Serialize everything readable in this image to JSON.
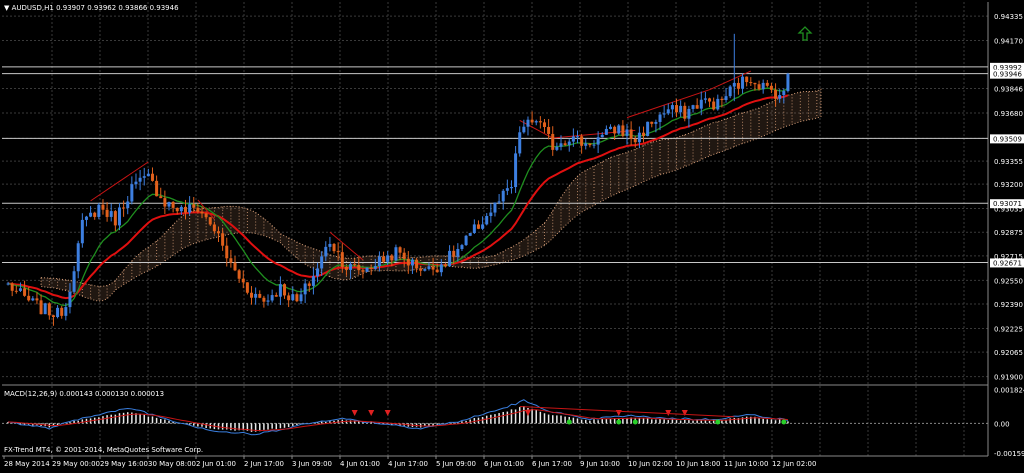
{
  "header": {
    "symbol_label": "AUDUSD,H1",
    "ohlc_label": "0.93907 0.93962 0.93866 0.93946"
  },
  "macd_header": {
    "label": "MACD(12,26,9) 0.000143 0.000130 0.000013"
  },
  "watermark": {
    "text": "FX-Trend MT4, © 2001-2014, MetaQuotes Software Corp."
  },
  "colors": {
    "background": "#000000",
    "grid": "#3a3a3a",
    "bull_candle": "#3d7fe0",
    "bear_candle": "#e0601c",
    "ema_fast": "#1f8f1f",
    "ema_slow": "#e01010",
    "cloud_a": "#d8a07a",
    "cloud_b": "#b08060",
    "trendline": "#c81414",
    "hline": "#c8c8c8",
    "macd_signal": "#c81414",
    "macd_line": "#3a7fe0",
    "arrow_up": "#2ad02a",
    "arrow_down": "#e02020"
  },
  "price_axis": {
    "ticks": [
      "0.94335",
      "0.94170",
      "0.93846",
      "0.93680",
      "0.93509",
      "0.93355",
      "0.93200",
      "0.93035",
      "0.92875",
      "0.92715",
      "0.92550",
      "0.92390",
      "0.92225",
      "0.92065",
      "0.91900"
    ],
    "tick_values": [
      0.94335,
      0.9417,
      0.93846,
      0.9368,
      0.93509,
      0.93355,
      0.932,
      0.93035,
      0.92875,
      0.92715,
      0.9255,
      0.9239,
      0.92225,
      0.92065,
      0.919
    ]
  },
  "hlines": {
    "labels": [
      "0.93992",
      "0.93946",
      "0.93509",
      "0.93071",
      "0.92671"
    ],
    "values": [
      0.93992,
      0.93946,
      0.93509,
      0.93071,
      0.92671
    ]
  },
  "macd_axis": {
    "ticks": [
      "0.001824",
      "0.00",
      "-0.001596"
    ],
    "tick_values": [
      0.001824,
      0.0,
      -0.001596
    ]
  },
  "time_axis": {
    "labels": [
      "28 May 2014",
      "29 May 00:00",
      "29 May 16:00",
      "30 May 08:00",
      "2 Jun 01:00",
      "2 Jun 17:00",
      "3 Jun 09:00",
      "4 Jun 01:00",
      "4 Jun 17:00",
      "5 Jun 09:00",
      "6 Jun 01:00",
      "6 Jun 17:00",
      "9 Jun 10:00",
      "10 Jun 02:00",
      "10 Jun 18:00",
      "11 Jun 10:00",
      "12 Jun 02:00"
    ]
  },
  "chart_data": {
    "type": "candlestick",
    "title": "AUDUSD,H1",
    "ylim": [
      0.9185,
      0.9443
    ],
    "macd_ylim": [
      -0.00175,
      0.002
    ],
    "keypoints": [
      [
        0,
        0.9252
      ],
      [
        4,
        0.9243
      ],
      [
        8,
        0.9236
      ],
      [
        12,
        0.9232
      ],
      [
        14,
        0.9238
      ],
      [
        18,
        0.9292
      ],
      [
        22,
        0.9305
      ],
      [
        26,
        0.9296
      ],
      [
        30,
        0.9318
      ],
      [
        34,
        0.9324
      ],
      [
        38,
        0.9308
      ],
      [
        42,
        0.9302
      ],
      [
        46,
        0.9304
      ],
      [
        50,
        0.929
      ],
      [
        54,
        0.9265
      ],
      [
        58,
        0.9249
      ],
      [
        62,
        0.9241
      ],
      [
        66,
        0.925
      ],
      [
        70,
        0.924
      ],
      [
        74,
        0.9258
      ],
      [
        78,
        0.9282
      ],
      [
        82,
        0.9264
      ],
      [
        86,
        0.9262
      ],
      [
        90,
        0.9268
      ],
      [
        94,
        0.9274
      ],
      [
        98,
        0.9266
      ],
      [
        102,
        0.9262
      ],
      [
        106,
        0.9268
      ],
      [
        110,
        0.9278
      ],
      [
        114,
        0.9292
      ],
      [
        118,
        0.9305
      ],
      [
        122,
        0.9318
      ],
      [
        124,
        0.9356
      ],
      [
        128,
        0.9364
      ],
      [
        132,
        0.9346
      ],
      [
        136,
        0.9352
      ],
      [
        140,
        0.9347
      ],
      [
        144,
        0.9352
      ],
      [
        148,
        0.9358
      ],
      [
        152,
        0.935
      ],
      [
        156,
        0.9362
      ],
      [
        160,
        0.937
      ],
      [
        164,
        0.9368
      ],
      [
        168,
        0.9376
      ],
      [
        172,
        0.9374
      ],
      [
        176,
        0.9386
      ],
      [
        180,
        0.9392
      ],
      [
        184,
        0.9384
      ],
      [
        188,
        0.938
      ],
      [
        189,
        0.9395
      ]
    ],
    "macd_keypoints": [
      [
        0,
        5e-05
      ],
      [
        10,
        -0.0002
      ],
      [
        20,
        0.0003
      ],
      [
        30,
        0.0006
      ],
      [
        40,
        0.0001
      ],
      [
        50,
        -0.0003
      ],
      [
        60,
        -0.00045
      ],
      [
        70,
        -0.0001
      ],
      [
        80,
        0.0002
      ],
      [
        90,
        0.0
      ],
      [
        100,
        -0.0002
      ],
      [
        110,
        0.0001
      ],
      [
        120,
        0.0006
      ],
      [
        125,
        0.0009
      ],
      [
        130,
        0.00055
      ],
      [
        140,
        0.00015
      ],
      [
        150,
        0.0003
      ],
      [
        160,
        0.0002
      ],
      [
        170,
        0.00015
      ],
      [
        180,
        0.00035
      ],
      [
        189,
        0.00013
      ]
    ]
  }
}
